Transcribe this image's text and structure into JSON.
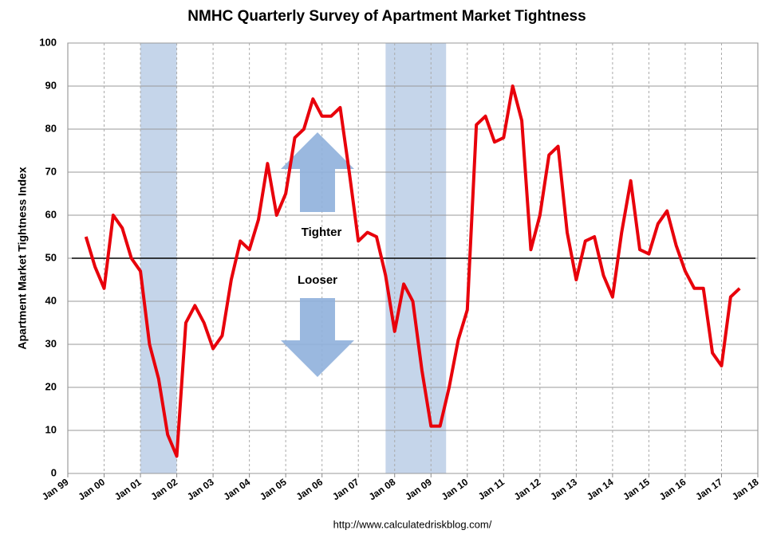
{
  "chart_data": {
    "type": "line",
    "title": "NMHC Quarterly Survey of Apartment Market Tightness",
    "y_label": "Apartment Market Tightness Index",
    "source": "http://www.calculatedriskblog.com/",
    "annotations": [
      "Tighter",
      "Looser"
    ],
    "reference_line": 50,
    "shaded_ranges": [
      [
        "2001-01",
        "2002-01"
      ],
      [
        "2007-10",
        "2009-06"
      ]
    ],
    "grid": true,
    "x": [
      "1999-07",
      "1999-10",
      "2000-01",
      "2000-04",
      "2000-07",
      "2000-10",
      "2001-01",
      "2001-04",
      "2001-07",
      "2001-10",
      "2002-01",
      "2002-04",
      "2002-07",
      "2002-10",
      "2003-01",
      "2003-04",
      "2003-07",
      "2003-10",
      "2004-01",
      "2004-04",
      "2004-07",
      "2004-10",
      "2005-01",
      "2005-04",
      "2005-07",
      "2005-10",
      "2006-01",
      "2006-04",
      "2006-07",
      "2006-10",
      "2007-01",
      "2007-04",
      "2007-07",
      "2007-10",
      "2008-01",
      "2008-04",
      "2008-07",
      "2008-10",
      "2009-01",
      "2009-04",
      "2009-07",
      "2009-10",
      "2010-01",
      "2010-04",
      "2010-07",
      "2010-10",
      "2011-01",
      "2011-04",
      "2011-07",
      "2011-10",
      "2012-01",
      "2012-04",
      "2012-07",
      "2012-10",
      "2013-01",
      "2013-04",
      "2013-07",
      "2013-10",
      "2014-01",
      "2014-04",
      "2014-07",
      "2014-10",
      "2015-01",
      "2015-04",
      "2015-07",
      "2015-10",
      "2016-01",
      "2016-04",
      "2016-07",
      "2016-10",
      "2017-01",
      "2017-04",
      "2017-07"
    ],
    "series": [
      {
        "name": "Market Tightness Index",
        "color": "#e8000b",
        "values": [
          55,
          48,
          43,
          60,
          57,
          50,
          47,
          30,
          22,
          9,
          4,
          35,
          39,
          35,
          29,
          32,
          45,
          54,
          52,
          59,
          72,
          60,
          65,
          78,
          80,
          87,
          83,
          83,
          85,
          70,
          54,
          56,
          55,
          46,
          33,
          44,
          40,
          24,
          11,
          11,
          20,
          31,
          38,
          81,
          83,
          77,
          78,
          90,
          82,
          52,
          60,
          74,
          76,
          56,
          45,
          54,
          55,
          46,
          41,
          56,
          68,
          52,
          51,
          58,
          61,
          53,
          47,
          43,
          43,
          28,
          25,
          41,
          43
        ]
      }
    ],
    "xlim": [
      "1999-01",
      "2018-01"
    ],
    "xticks": [
      {
        "value": "1999-01",
        "label": "Jan 99"
      },
      {
        "value": "2000-01",
        "label": "Jan 00"
      },
      {
        "value": "2001-01",
        "label": "Jan 01"
      },
      {
        "value": "2002-01",
        "label": "Jan 02"
      },
      {
        "value": "2003-01",
        "label": "Jan 03"
      },
      {
        "value": "2004-01",
        "label": "Jan 04"
      },
      {
        "value": "2005-01",
        "label": "Jan 05"
      },
      {
        "value": "2006-01",
        "label": "Jan 06"
      },
      {
        "value": "2007-01",
        "label": "Jan 07"
      },
      {
        "value": "2008-01",
        "label": "Jan 08"
      },
      {
        "value": "2009-01",
        "label": "Jan 09"
      },
      {
        "value": "2010-01",
        "label": "Jan 10"
      },
      {
        "value": "2011-01",
        "label": "Jan 11"
      },
      {
        "value": "2012-01",
        "label": "Jan 12"
      },
      {
        "value": "2013-01",
        "label": "Jan 13"
      },
      {
        "value": "2014-01",
        "label": "Jan 14"
      },
      {
        "value": "2015-01",
        "label": "Jan 15"
      },
      {
        "value": "2016-01",
        "label": "Jan 16"
      },
      {
        "value": "2017-01",
        "label": "Jan 17"
      },
      {
        "value": "2018-01",
        "label": "Jan 18"
      }
    ],
    "ylim": [
      0,
      100
    ],
    "yticks": [
      0,
      10,
      20,
      30,
      40,
      50,
      60,
      70,
      80,
      90,
      100
    ]
  }
}
